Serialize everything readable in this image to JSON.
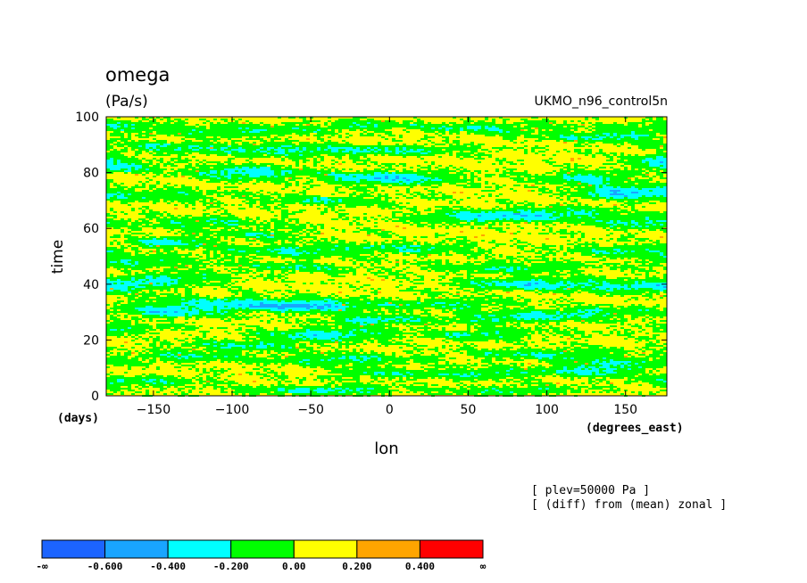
{
  "chart_data": {
    "type": "heatmap",
    "title": "omega",
    "units": "(Pa/s)",
    "model": "UKMO_n96_control5n",
    "xlabel": "lon",
    "xunits": "(degrees_east)",
    "ylabel": "time",
    "yunits": "(days)",
    "xlim": [
      -180,
      176.25
    ],
    "ylim": [
      0,
      100
    ],
    "xticks": [
      -150,
      -100,
      -50,
      0,
      50,
      100,
      150
    ],
    "yticks": [
      0,
      20,
      40,
      60,
      80,
      100
    ],
    "xtick_labels": [
      "−150",
      "−100",
      "−50",
      "0",
      "50",
      "100",
      "150"
    ],
    "ytick_labels": [
      "0",
      "20",
      "40",
      "60",
      "80",
      "100"
    ],
    "notes": [
      "[ plev=50000 Pa ]",
      "[ (diff) from (mean) zonal ]"
    ],
    "colorbar": {
      "levels": [
        "-∞",
        "-0.600",
        "-0.400",
        "-0.200",
        "0.00",
        "0.200",
        "0.400",
        "∞"
      ],
      "colors": [
        "#1c64ff",
        "#19a5ff",
        "#00ffff",
        "#00ff00",
        "#ffff00",
        "#ffa500",
        "#ff0000"
      ]
    },
    "background_color": "#ffff00",
    "features": [
      {
        "lon": -175,
        "t": 97,
        "sx": 40,
        "sy": 1.8,
        "val": -0.24
      },
      {
        "lon": -90,
        "t": 95,
        "sx": 50,
        "sy": 2.0,
        "val": -0.25
      },
      {
        "lon": -20,
        "t": 97,
        "sx": 30,
        "sy": 1.6,
        "val": -0.22
      },
      {
        "lon": 60,
        "t": 96,
        "sx": 50,
        "sy": 2.0,
        "val": -0.24
      },
      {
        "lon": 140,
        "t": 93,
        "sx": 40,
        "sy": 2.0,
        "val": -0.3
      },
      {
        "lon": -140,
        "t": 89,
        "sx": 45,
        "sy": 2.0,
        "val": -0.22
      },
      {
        "lon": -60,
        "t": 88,
        "sx": 55,
        "sy": 2.2,
        "val": -0.28
      },
      {
        "lon": 20,
        "t": 88,
        "sx": 40,
        "sy": 1.8,
        "val": -0.21
      },
      {
        "lon": 170,
        "t": 84,
        "sx": 20,
        "sy": 2.0,
        "val": -0.32
      },
      {
        "lon": -170,
        "t": 82,
        "sx": 25,
        "sy": 2.0,
        "val": -0.26
      },
      {
        "lon": -90,
        "t": 80,
        "sx": 35,
        "sy": 2.4,
        "val": -0.38
      },
      {
        "lon": 0,
        "t": 78,
        "sx": 40,
        "sy": 2.4,
        "val": -0.42
      },
      {
        "lon": 125,
        "t": 78,
        "sx": 30,
        "sy": 2.2,
        "val": -0.32
      },
      {
        "lon": 150,
        "t": 73,
        "sx": 30,
        "sy": 2.4,
        "val": -0.44
      },
      {
        "lon": -150,
        "t": 72,
        "sx": 45,
        "sy": 2.0,
        "val": -0.22
      },
      {
        "lon": -40,
        "t": 70,
        "sx": 40,
        "sy": 2.0,
        "val": -0.23
      },
      {
        "lon": 100,
        "t": 65,
        "sx": 50,
        "sy": 2.4,
        "val": -0.32
      },
      {
        "lon": 50,
        "t": 64,
        "sx": 40,
        "sy": 2.0,
        "val": -0.25
      },
      {
        "lon": -120,
        "t": 62,
        "sx": 40,
        "sy": 2.0,
        "val": -0.24
      },
      {
        "lon": 160,
        "t": 62,
        "sx": 25,
        "sy": 2.0,
        "val": -0.3
      },
      {
        "lon": -80,
        "t": 58,
        "sx": 30,
        "sy": 1.8,
        "val": -0.22
      },
      {
        "lon": -140,
        "t": 55,
        "sx": 25,
        "sy": 2.0,
        "val": -0.32
      },
      {
        "lon": -60,
        "t": 52,
        "sx": 50,
        "sy": 2.4,
        "val": -0.27
      },
      {
        "lon": 20,
        "t": 53,
        "sx": 40,
        "sy": 2.0,
        "val": -0.22
      },
      {
        "lon": 150,
        "t": 52,
        "sx": 40,
        "sy": 2.0,
        "val": -0.25
      },
      {
        "lon": -160,
        "t": 48,
        "sx": 40,
        "sy": 2.0,
        "val": -0.26
      },
      {
        "lon": 80,
        "t": 46,
        "sx": 50,
        "sy": 2.0,
        "val": -0.24
      },
      {
        "lon": -60,
        "t": 46,
        "sx": 40,
        "sy": 1.8,
        "val": -0.22
      },
      {
        "lon": 90,
        "t": 40,
        "sx": 40,
        "sy": 2.2,
        "val": -0.38
      },
      {
        "lon": -170,
        "t": 39,
        "sx": 30,
        "sy": 2.0,
        "val": -0.32
      },
      {
        "lon": -140,
        "t": 42,
        "sx": 40,
        "sy": 2.0,
        "val": -0.27
      },
      {
        "lon": 150,
        "t": 39,
        "sx": 30,
        "sy": 2.0,
        "val": -0.25
      },
      {
        "lon": -100,
        "t": 33,
        "sx": 60,
        "sy": 2.4,
        "val": -0.3
      },
      {
        "lon": -50,
        "t": 32,
        "sx": 40,
        "sy": 2.0,
        "val": -0.38
      },
      {
        "lon": 40,
        "t": 33,
        "sx": 40,
        "sy": 2.0,
        "val": -0.24
      },
      {
        "lon": -140,
        "t": 30,
        "sx": 30,
        "sy": 2.0,
        "val": -0.35
      },
      {
        "lon": -10,
        "t": 27,
        "sx": 30,
        "sy": 1.8,
        "val": -0.36
      },
      {
        "lon": 80,
        "t": 28,
        "sx": 40,
        "sy": 2.0,
        "val": -0.3
      },
      {
        "lon": 130,
        "t": 30,
        "sx": 40,
        "sy": 2.0,
        "val": -0.24
      },
      {
        "lon": -40,
        "t": 22,
        "sx": 40,
        "sy": 2.2,
        "val": -0.35
      },
      {
        "lon": -170,
        "t": 24,
        "sx": 30,
        "sy": 1.8,
        "val": -0.22
      },
      {
        "lon": 60,
        "t": 22,
        "sx": 40,
        "sy": 2.0,
        "val": -0.25
      },
      {
        "lon": -90,
        "t": 18,
        "sx": 45,
        "sy": 2.0,
        "val": -0.24
      },
      {
        "lon": -130,
        "t": 14,
        "sx": 40,
        "sy": 2.0,
        "val": -0.22
      },
      {
        "lon": -30,
        "t": 13,
        "sx": 45,
        "sy": 2.0,
        "val": -0.28
      },
      {
        "lon": 100,
        "t": 15,
        "sx": 50,
        "sy": 2.0,
        "val": -0.24
      },
      {
        "lon": 150,
        "t": 12,
        "sx": 40,
        "sy": 1.8,
        "val": -0.22
      },
      {
        "lon": 60,
        "t": 8,
        "sx": 40,
        "sy": 2.0,
        "val": -0.25
      },
      {
        "lon": 130,
        "t": 9,
        "sx": 30,
        "sy": 2.0,
        "val": -0.32
      },
      {
        "lon": -160,
        "t": 5,
        "sx": 40,
        "sy": 2.0,
        "val": -0.26
      },
      {
        "lon": -40,
        "t": 2,
        "sx": 50,
        "sy": 1.6,
        "val": -0.3
      },
      {
        "lon": 80,
        "t": 2,
        "sx": 40,
        "sy": 1.6,
        "val": -0.24
      },
      {
        "lon": -10,
        "t": 8,
        "sx": 30,
        "sy": 2.0,
        "val": -0.22
      }
    ]
  }
}
